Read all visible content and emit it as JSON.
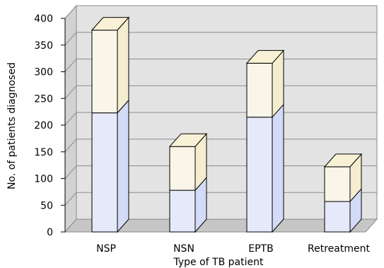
{
  "chart_data": {
    "type": "bar",
    "stacked": true,
    "style": "3d",
    "categories": [
      "NSP",
      "NSN",
      "EPTB",
      "Retreatment"
    ],
    "series": [
      {
        "values": [
          223,
          78,
          215,
          57
        ],
        "color": "#e5e9f9"
      },
      {
        "values": [
          155,
          82,
          101,
          65
        ],
        "color": "#f9f5e8"
      }
    ],
    "xlabel": "Type of TB patient",
    "ylabel": "No. of patients diagnosed",
    "ylim": [
      0,
      400
    ],
    "yticks": [
      0,
      50,
      100,
      150,
      200,
      250,
      300,
      350,
      400
    ],
    "grid": true,
    "legend": "none",
    "colors": {
      "wall": "#e3e3e3",
      "floor": "#c6c6c6",
      "side_wall": "#d2d2d2",
      "lower_side": "#d3dbf6",
      "upper_side": "#f4edcf",
      "upper_top": "#f9f1d6"
    }
  }
}
